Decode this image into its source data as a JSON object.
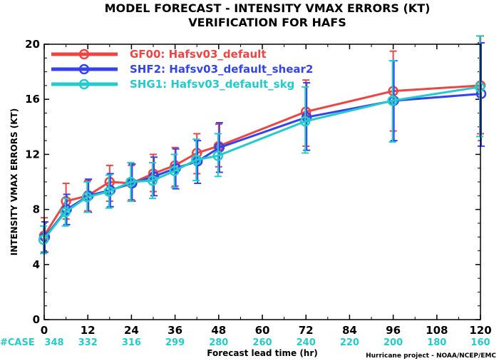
{
  "chart_data": {
    "type": "line",
    "title": "MODEL FORECAST - INTENSITY VMAX ERRORS (KT)",
    "subtitle": "VERIFICATION FOR HAFS",
    "xlabel": "Forecast lead time (hr)",
    "ylabel": "INTENSITY VMAX ERRORS (KT)",
    "xlim": [
      0,
      120
    ],
    "ylim": [
      0,
      20
    ],
    "x_ticks": [
      0,
      12,
      24,
      36,
      48,
      60,
      72,
      84,
      96,
      108,
      120
    ],
    "y_ticks": [
      0,
      4,
      8,
      12,
      16,
      20
    ],
    "legend_position": "top-left",
    "grid": false,
    "case_label": "#CASE",
    "case_hours": [
      0,
      12,
      24,
      36,
      48,
      60,
      72,
      84,
      96,
      108,
      120
    ],
    "case_counts": [
      "348",
      "332",
      "316",
      "299",
      "280",
      "260",
      "240",
      "220",
      "200",
      "180",
      "160"
    ],
    "credit": "Hurricane project - NOAA/NCEP/EMC",
    "x": [
      0,
      6,
      12,
      18,
      24,
      30,
      36,
      42,
      48,
      72,
      96,
      120
    ],
    "series": [
      {
        "name": "GF00: Hafsv03_default",
        "color": "#ee4444",
        "values": [
          6.1,
          8.6,
          9.0,
          10.0,
          9.9,
          10.6,
          11.2,
          12.1,
          12.6,
          15.1,
          16.6,
          17.0
        ],
        "err_low": [
          4.9,
          7.3,
          7.9,
          8.6,
          8.7,
          9.3,
          9.7,
          10.6,
          11.1,
          12.6,
          13.7,
          13.5
        ],
        "err_high": [
          7.4,
          9.9,
          10.1,
          11.2,
          11.2,
          12.0,
          12.5,
          13.5,
          14.2,
          17.4,
          19.5,
          20.6
        ]
      },
      {
        "name": "SHF2: Hafsv03_default_shear2",
        "color": "#3344ee",
        "values": [
          6.0,
          8.0,
          9.0,
          9.4,
          9.9,
          10.4,
          11.0,
          11.5,
          12.5,
          14.7,
          15.9,
          16.4
        ],
        "err_low": [
          4.9,
          6.9,
          7.8,
          8.2,
          8.6,
          9.0,
          9.5,
          9.9,
          10.7,
          12.3,
          13.0,
          12.6
        ],
        "err_high": [
          7.1,
          9.1,
          10.2,
          10.6,
          11.3,
          11.8,
          12.4,
          13.0,
          14.3,
          17.2,
          18.8,
          20.1
        ]
      },
      {
        "name": "SHG1: Hafsv03_default_skg",
        "color": "#22cccc",
        "values": [
          5.8,
          7.8,
          8.9,
          9.3,
          10.0,
          10.1,
          10.8,
          11.6,
          11.9,
          14.4,
          15.9,
          16.9
        ],
        "err_low": [
          4.8,
          6.8,
          7.8,
          8.1,
          8.6,
          8.8,
          9.6,
          10.1,
          10.4,
          12.1,
          12.9,
          13.3
        ],
        "err_high": [
          6.8,
          8.8,
          10.0,
          10.5,
          11.4,
          11.4,
          12.0,
          13.1,
          13.5,
          16.9,
          18.8,
          20.6
        ]
      }
    ]
  }
}
